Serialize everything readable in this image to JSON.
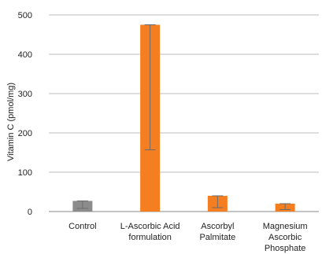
{
  "chart_data": {
    "type": "bar",
    "title": "",
    "xlabel": "",
    "ylabel": "Vitamin C (pmol/mg)",
    "ylim": [
      0,
      500
    ],
    "yticks": [
      0,
      100,
      200,
      300,
      400,
      500
    ],
    "grid": "horizontal",
    "legend": "none",
    "categories": [
      [
        "Control"
      ],
      [
        "L-Ascorbic Acid",
        "formulation"
      ],
      [
        "Ascorbyl",
        "Palmitate"
      ],
      [
        "Magnesium",
        "Ascorbic",
        "Phosphate"
      ]
    ],
    "values": [
      27,
      475,
      40,
      20
    ],
    "error_low": [
      8,
      157,
      10,
      5
    ],
    "error_high": [
      27,
      475,
      40,
      20
    ],
    "colors": [
      "#8c8c8c",
      "#f57f20",
      "#f57f20",
      "#f57f20"
    ],
    "gridline_color": "#bdbdbd",
    "axis_color": "#888888",
    "errorbar_color": "#6b6b6b"
  }
}
